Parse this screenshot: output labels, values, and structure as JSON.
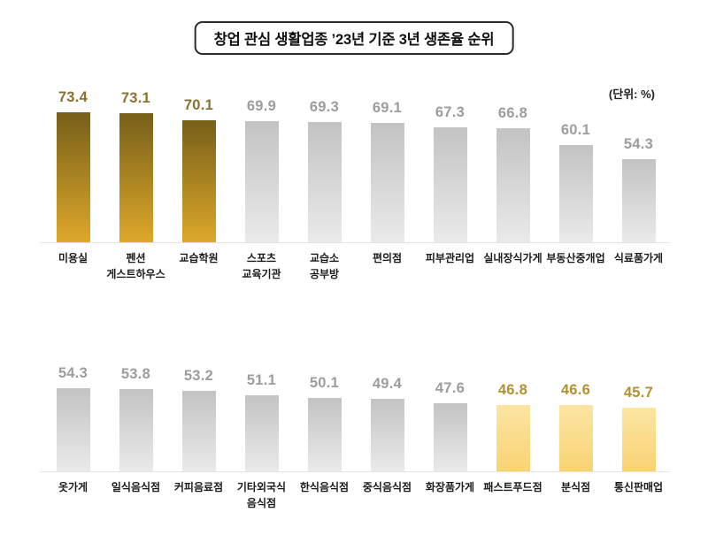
{
  "title": "창업 관심 생활업종 ’23년 기준 3년 생존율 순위",
  "unit_label": "(단위: %)",
  "chart_data": {
    "type": "bar",
    "title": "창업 관심 생활업종 ’23년 기준 3년 생존율 순위",
    "unit": "%",
    "ylabel": "3년 생존율",
    "grid": false,
    "legend": false,
    "value_labels": "above bars, one decimal",
    "rows": [
      {
        "name": "rank-1-10",
        "categories": [
          "미용실",
          "펜션\n게스트하우스",
          "교습학원",
          "스포츠\n교육기관",
          "교습소\n공부방",
          "편의점",
          "피부관리업",
          "실내장식가게",
          "부동산중개업",
          "식료품가게"
        ],
        "values": [
          73.4,
          73.1,
          70.1,
          69.9,
          69.3,
          69.1,
          67.3,
          66.8,
          60.1,
          54.3
        ],
        "styles": [
          "gold",
          "gold",
          "gold",
          "gray",
          "gray",
          "gray",
          "gray",
          "gray",
          "gray",
          "gray"
        ]
      },
      {
        "name": "rank-11-20",
        "categories": [
          "옷가게",
          "일식음식점",
          "커피음료점",
          "기타외국식\n음식점",
          "한식음식점",
          "중식음식점",
          "화장품가게",
          "패스트푸드점",
          "분식점",
          "통신판매업"
        ],
        "values": [
          54.3,
          53.8,
          53.2,
          51.1,
          50.1,
          49.4,
          47.6,
          46.8,
          46.6,
          45.7
        ],
        "styles": [
          "gray",
          "gray",
          "gray",
          "gray",
          "gray",
          "gray",
          "gray",
          "yellow",
          "yellow",
          "yellow"
        ]
      }
    ],
    "palette": {
      "gold_bar_top": "#765f19",
      "gold_bar_bottom": "#dda82a",
      "gray_bar_top": "#c3c3c3",
      "gray_bar_bottom": "#eaeaea",
      "yellow_bar_top": "#fce5a3",
      "yellow_bar_bottom": "#f8d373",
      "value_gold": "#8a7130",
      "value_gray": "#9d9d9d",
      "value_yellow": "#b3912f",
      "label_color": "#1b1b1b"
    }
  }
}
